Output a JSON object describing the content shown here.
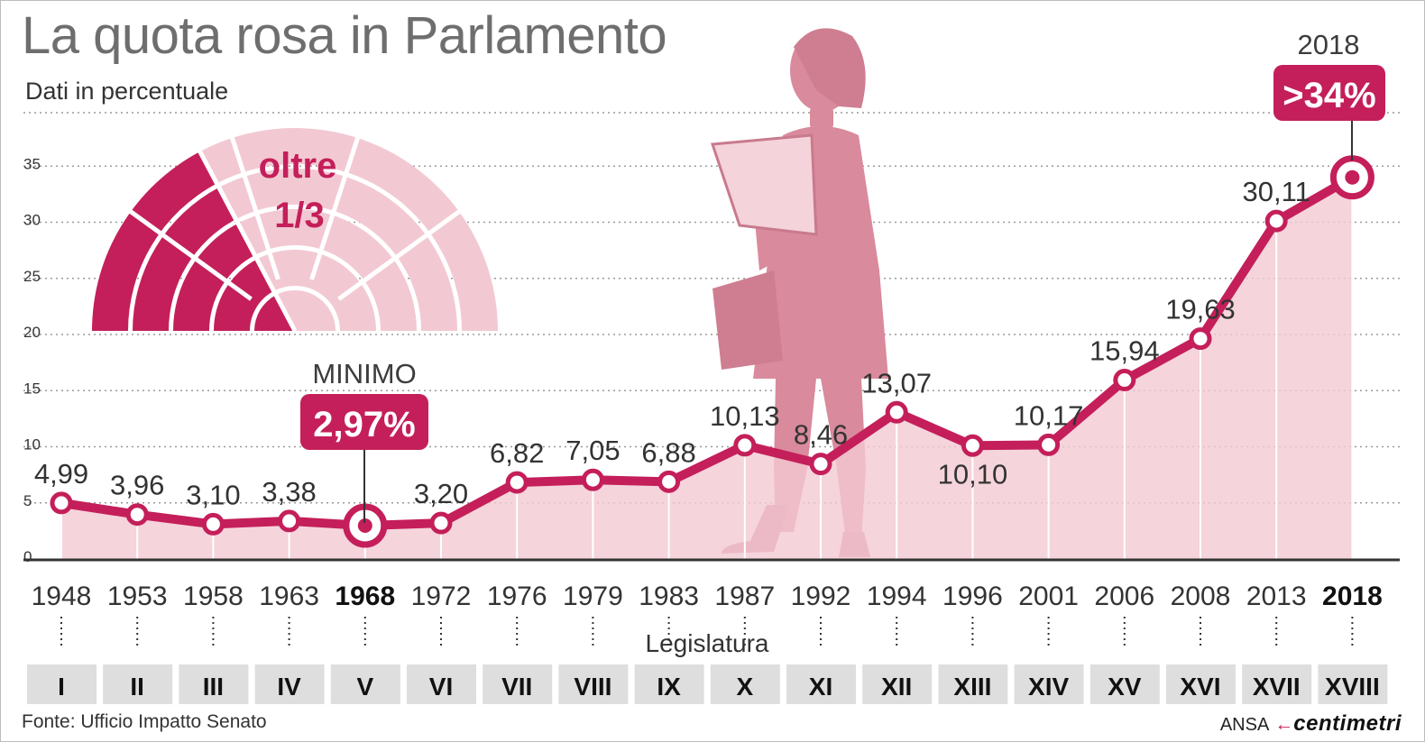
{
  "title": "La quota rosa in Parlamento",
  "subtitle": "Dati in percentuale",
  "hemicycle": {
    "line1": "oltre",
    "line2": "1/3"
  },
  "minimum": {
    "label": "MINIMO",
    "value": "2,97%"
  },
  "latest": {
    "year": "2018",
    "value": ">34%"
  },
  "colors": {
    "accent": "#c41f5a",
    "light": "#f2c9d3",
    "silhouette": "#d98a9c",
    "grid": "#9a9a9a",
    "legislature_bg": "#dedede"
  },
  "legislature_label": "Legislatura",
  "footer": {
    "source": "Fonte: Ufficio Impatto Senato",
    "agency": "ANSA",
    "brand": "centimetri"
  },
  "chart_data": {
    "type": "area",
    "title": "La quota rosa in Parlamento",
    "ylabel": "Dati in percentuale",
    "xlabel": "Legislatura",
    "ylim": [
      0,
      35
    ],
    "yticks": [
      0,
      5,
      10,
      15,
      20,
      25,
      30,
      35
    ],
    "x": [
      "1948",
      "1953",
      "1958",
      "1963",
      "1968",
      "1972",
      "1976",
      "1979",
      "1983",
      "1987",
      "1992",
      "1994",
      "1996",
      "2001",
      "2006",
      "2008",
      "2013",
      "2018"
    ],
    "legislatures": [
      "I",
      "II",
      "III",
      "IV",
      "V",
      "VI",
      "VII",
      "VIII",
      "IX",
      "X",
      "XI",
      "XII",
      "XIII",
      "XIV",
      "XV",
      "XVI",
      "XVII",
      "XVIII"
    ],
    "values": [
      4.99,
      3.96,
      3.1,
      3.38,
      2.97,
      3.2,
      6.82,
      7.05,
      6.88,
      10.13,
      8.46,
      13.07,
      10.1,
      10.17,
      15.94,
      19.63,
      30.11,
      34
    ],
    "labels": [
      "4,99",
      "3,96",
      "3,10",
      "3,38",
      "",
      "3,20",
      "6,82",
      "7,05",
      "6,88",
      "10,13",
      "8,46",
      "13,07",
      "10,10",
      "10,17",
      "15,94",
      "19,63",
      "30,11",
      ""
    ],
    "highlighted": [
      "1968",
      "2018"
    ],
    "grid": true
  }
}
